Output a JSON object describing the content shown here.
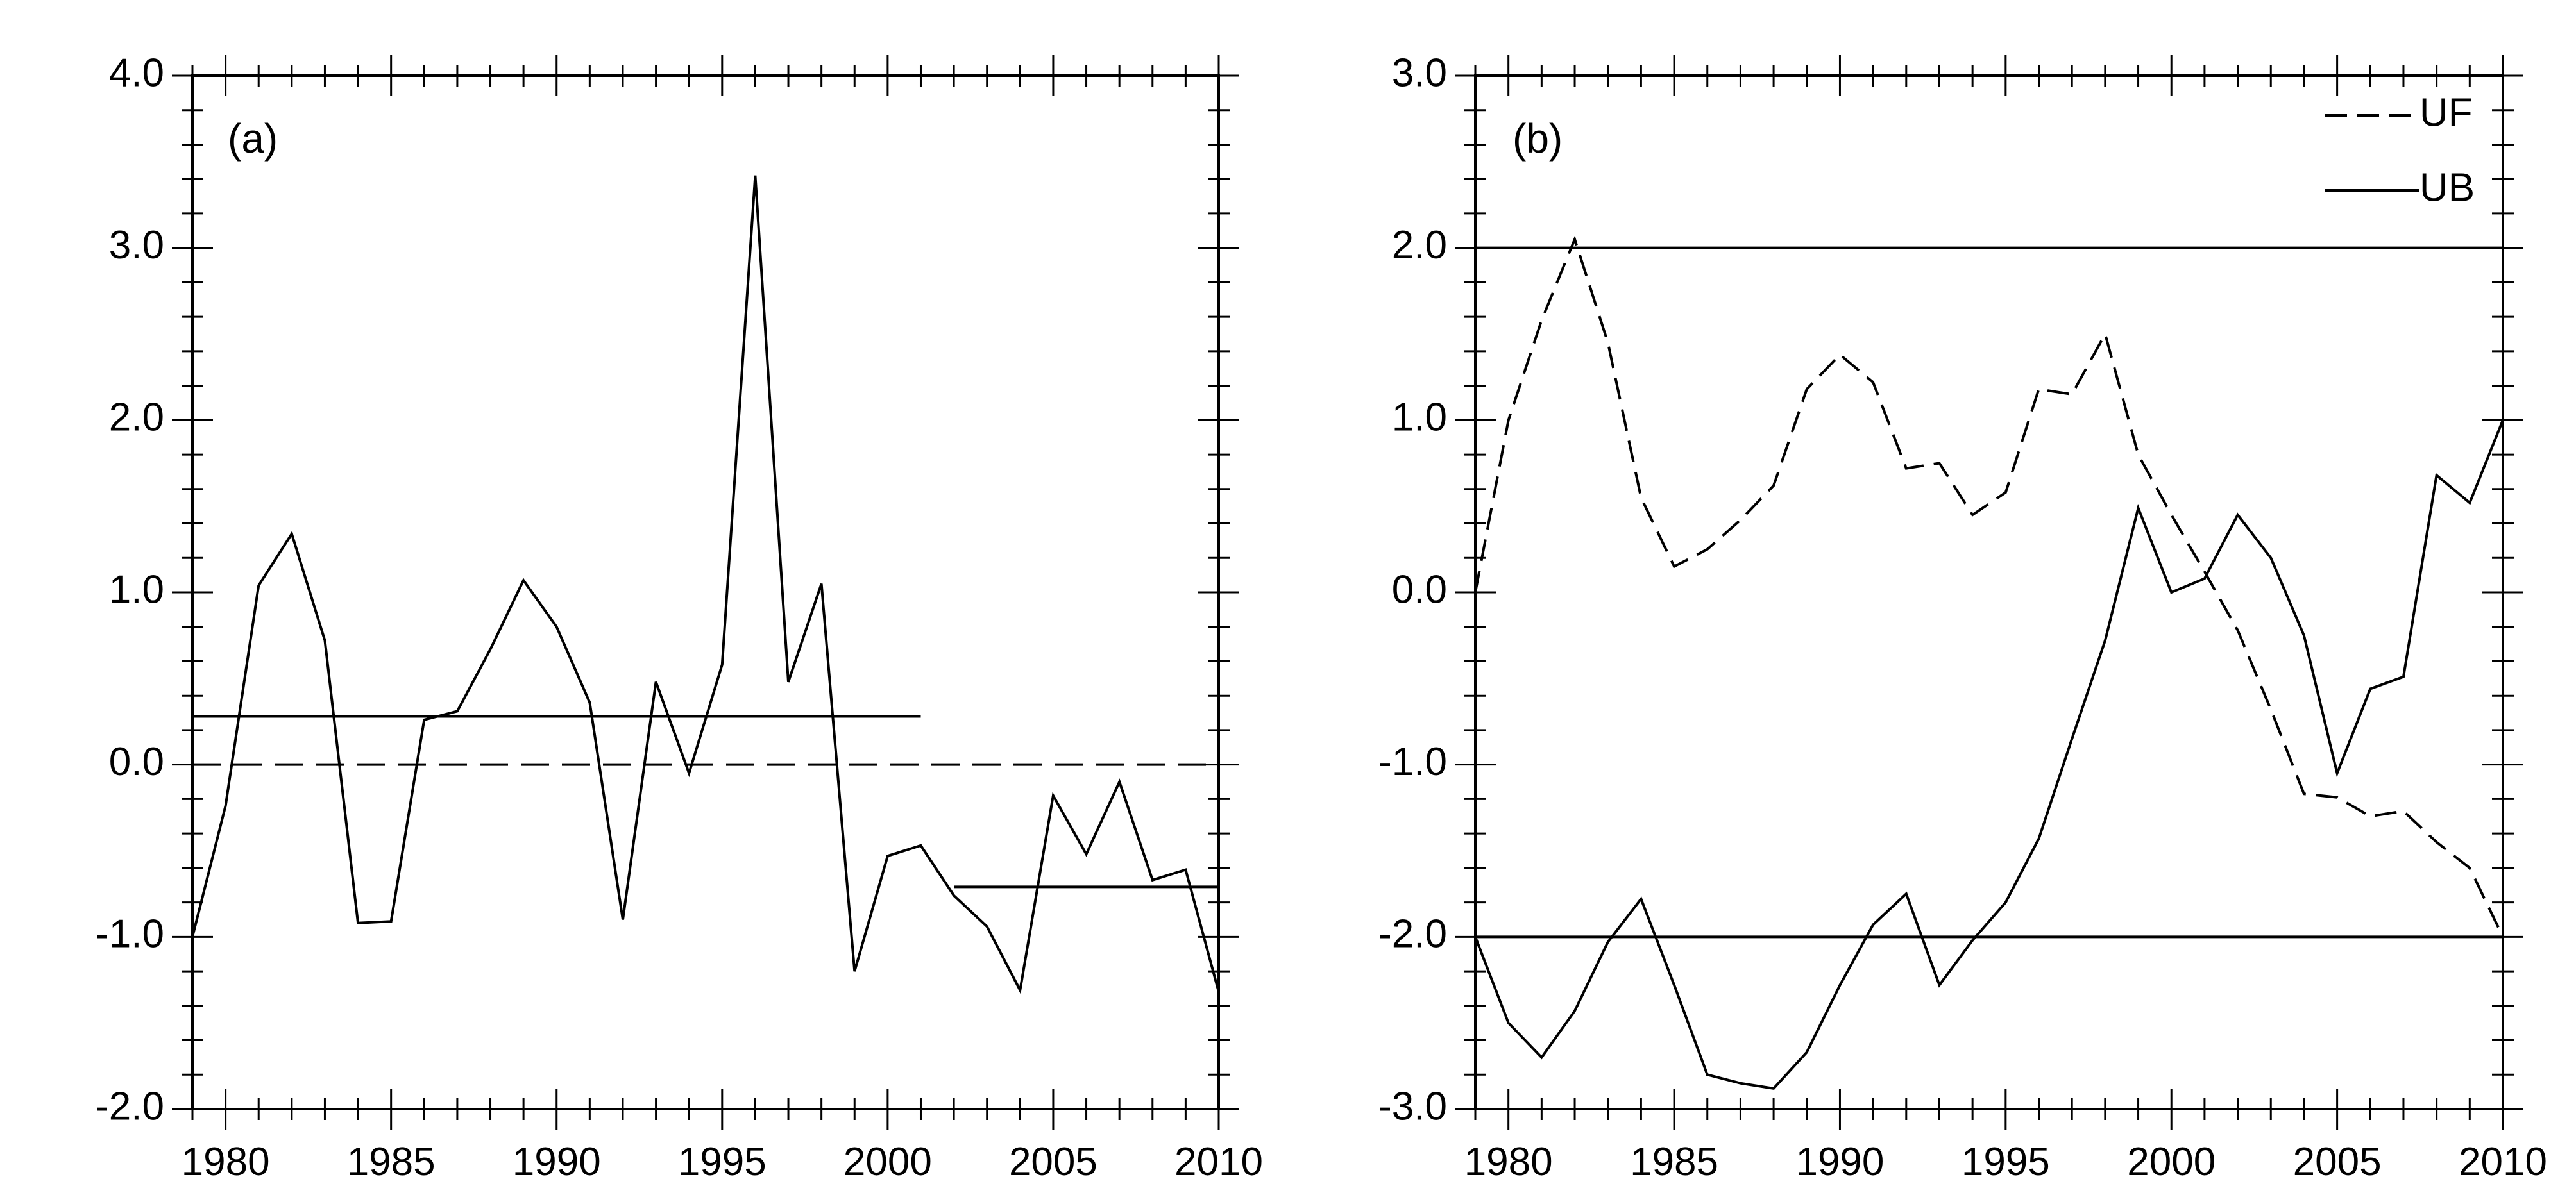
{
  "chart_data": [
    {
      "type": "line",
      "panel_label": "(a)",
      "xlim": [
        1979,
        2010
      ],
      "ylim": [
        -2.0,
        4.0
      ],
      "x_ticks": [
        1980,
        1985,
        1990,
        1995,
        2000,
        2005,
        2010
      ],
      "y_ticks": [
        4.0,
        3.0,
        2.0,
        1.0,
        0.0,
        -1.0,
        -2.0
      ],
      "x_tick_labels": [
        "1980",
        "1985",
        "1990",
        "1995",
        "2000",
        "2005",
        "2010"
      ],
      "y_tick_labels": [
        "4.0",
        "3.0",
        "2.0",
        "1.0",
        "0.0",
        "-1.0",
        "-2.0"
      ],
      "series": [
        {
          "style": "solid",
          "x": [
            1979,
            1980,
            1981,
            1982,
            1983,
            1984,
            1985,
            1986,
            1987,
            1988,
            1989,
            1990,
            1991,
            1992,
            1993,
            1994,
            1995,
            1996,
            1997,
            1998,
            1999,
            2000,
            2001,
            2002,
            2003,
            2004,
            2005,
            2006,
            2007,
            2008,
            2009,
            2010
          ],
          "y": [
            -1.0,
            -0.24,
            1.04,
            1.34,
            0.72,
            -0.92,
            -0.91,
            0.26,
            0.31,
            0.67,
            1.07,
            0.8,
            0.36,
            -0.9,
            0.48,
            -0.05,
            0.58,
            3.42,
            0.48,
            1.05,
            -1.2,
            -0.53,
            -0.47,
            -0.76,
            -0.94,
            -1.31,
            -0.18,
            -0.52,
            -0.1,
            -0.67,
            -0.61,
            -1.32
          ]
        }
      ],
      "reference_lines": [
        {
          "style": "solid",
          "x": [
            1979,
            2001
          ],
          "y": 0.28
        },
        {
          "style": "solid",
          "x": [
            2002,
            2010
          ],
          "y": -0.71
        },
        {
          "style": "dashed",
          "x": [
            1979,
            2010
          ],
          "y": 0.0
        }
      ],
      "grid": false
    },
    {
      "type": "line",
      "panel_label": "(b)",
      "xlim": [
        1979,
        2010
      ],
      "ylim": [
        -3.0,
        3.0
      ],
      "x_ticks": [
        1980,
        1985,
        1990,
        1995,
        2000,
        2005,
        2010
      ],
      "y_ticks": [
        3.0,
        2.0,
        1.0,
        0.0,
        -1.0,
        -2.0,
        -3.0
      ],
      "x_tick_labels": [
        "1980",
        "1985",
        "1990",
        "1995",
        "2000",
        "2005",
        "2010"
      ],
      "y_tick_labels": [
        "3.0",
        "2.0",
        "1.0",
        "0.0",
        "-1.0",
        "-2.0",
        "-3.0"
      ],
      "legend_position": "top-right",
      "series": [
        {
          "name": "UF",
          "style": "dashed",
          "x": [
            1979,
            1980,
            1981,
            1982,
            1983,
            1984,
            1985,
            1986,
            1987,
            1988,
            1989,
            1990,
            1991,
            1992,
            1993,
            1994,
            1995,
            1996,
            1997,
            1998,
            1999,
            2000,
            2001,
            2002,
            2003,
            2004,
            2005,
            2006,
            2007,
            2008,
            2009,
            2010
          ],
          "y": [
            0.0,
            1.0,
            1.58,
            2.05,
            1.45,
            0.55,
            0.15,
            0.25,
            0.42,
            0.62,
            1.18,
            1.38,
            1.22,
            0.72,
            0.75,
            0.45,
            0.58,
            1.18,
            1.15,
            1.5,
            0.8,
            0.45,
            0.12,
            -0.22,
            -0.68,
            -1.17,
            -1.19,
            -1.3,
            -1.27,
            -1.45,
            -1.6,
            -2.0
          ]
        },
        {
          "name": "UB",
          "style": "solid",
          "x": [
            1979,
            1980,
            1981,
            1982,
            1983,
            1984,
            1985,
            1986,
            1987,
            1988,
            1989,
            1990,
            1991,
            1992,
            1993,
            1994,
            1995,
            1996,
            1997,
            1998,
            1999,
            2000,
            2001,
            2002,
            2003,
            2004,
            2005,
            2006,
            2007,
            2008,
            2009,
            2010
          ],
          "y": [
            -2.0,
            -2.5,
            -2.7,
            -2.43,
            -2.03,
            -1.78,
            -2.28,
            -2.8,
            -2.85,
            -2.88,
            -2.67,
            -2.28,
            -1.93,
            -1.75,
            -2.28,
            -2.02,
            -1.8,
            -1.43,
            -0.85,
            -0.28,
            0.49,
            0.0,
            0.08,
            0.45,
            0.2,
            -0.25,
            -1.05,
            -0.56,
            -0.49,
            0.68,
            0.52,
            1.0
          ]
        }
      ],
      "reference_lines": [
        {
          "style": "solid",
          "x": [
            1979,
            2010
          ],
          "y": 2.0
        },
        {
          "style": "solid",
          "x": [
            1979,
            2010
          ],
          "y": -2.0
        }
      ],
      "grid": false
    }
  ]
}
